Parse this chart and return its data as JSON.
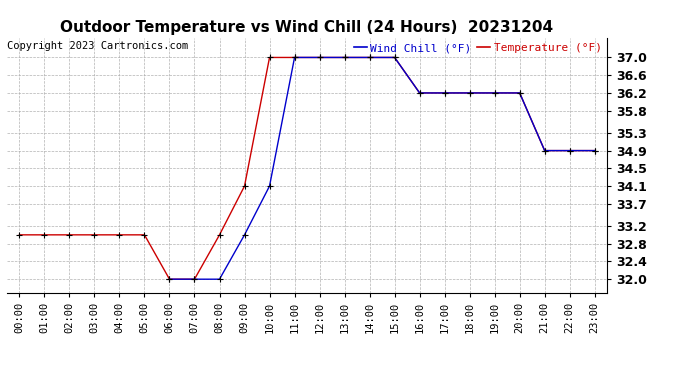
{
  "title": "Outdoor Temperature vs Wind Chill (24 Hours)  20231204",
  "copyright": "Copyright 2023 Cartronics.com",
  "legend_wind_chill": "Wind Chill (°F)",
  "legend_temperature": "Temperature (°F)",
  "x_labels": [
    "00:00",
    "01:00",
    "02:00",
    "03:00",
    "04:00",
    "05:00",
    "06:00",
    "07:00",
    "08:00",
    "09:00",
    "10:00",
    "11:00",
    "12:00",
    "13:00",
    "14:00",
    "15:00",
    "16:00",
    "17:00",
    "18:00",
    "19:00",
    "20:00",
    "21:00",
    "22:00",
    "23:00"
  ],
  "temperature_x": [
    0,
    1,
    2,
    3,
    4,
    5,
    6,
    7,
    8,
    9,
    10,
    11,
    12,
    13,
    14,
    15,
    16,
    17,
    18,
    19,
    20,
    21,
    22,
    23
  ],
  "temperature_y": [
    33.0,
    33.0,
    33.0,
    33.0,
    33.0,
    33.0,
    32.0,
    32.0,
    33.0,
    34.1,
    37.0,
    37.0,
    37.0,
    37.0,
    37.0,
    37.0,
    36.2,
    36.2,
    36.2,
    36.2,
    36.2,
    34.9,
    34.9,
    34.9
  ],
  "wind_chill_x": [
    6,
    7,
    8,
    9,
    10,
    11,
    12,
    13,
    14,
    15,
    16,
    17,
    18,
    19,
    20,
    21,
    22,
    23
  ],
  "wind_chill_y": [
    32.0,
    32.0,
    32.0,
    33.0,
    34.1,
    37.0,
    37.0,
    37.0,
    37.0,
    37.0,
    36.2,
    36.2,
    36.2,
    36.2,
    36.2,
    34.9,
    34.9,
    34.9
  ],
  "temperature_color": "#cc0000",
  "wind_chill_color": "#0000cc",
  "marker_color": "#000000",
  "ylim_min": 31.7,
  "ylim_max": 37.45,
  "yticks": [
    32.0,
    32.4,
    32.8,
    33.2,
    33.7,
    34.1,
    34.5,
    34.9,
    35.3,
    35.8,
    36.2,
    36.6,
    37.0
  ],
  "background_color": "#ffffff",
  "grid_color": "#aaaaaa",
  "title_fontsize": 11,
  "label_fontsize": 7.5,
  "ytick_fontsize": 9,
  "copyright_fontsize": 7.5
}
